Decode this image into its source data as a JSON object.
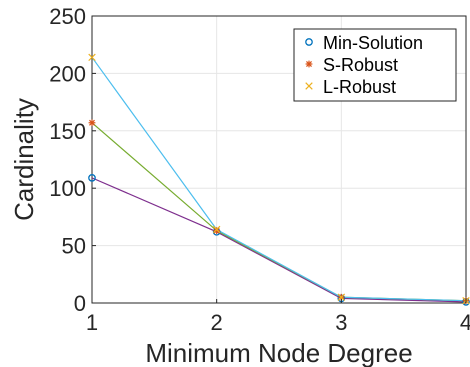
{
  "chart_data": {
    "type": "line",
    "xlabel": "Minimum Node Degree",
    "ylabel": "Cardinality",
    "x": [
      1,
      2,
      3,
      4
    ],
    "xlim": [
      1,
      4
    ],
    "ylim": [
      0,
      250
    ],
    "xticks": [
      "1",
      "2",
      "3",
      "4"
    ],
    "yticks": [
      "0",
      "50",
      "100",
      "150",
      "200",
      "250"
    ],
    "grid": true,
    "legend_position": "top-right",
    "series": [
      {
        "name": "Min-Solution",
        "values": [
          109,
          62,
          4,
          1
        ],
        "line_color": "#7e2f8e",
        "marker": "circle",
        "marker_color": "#0072bd"
      },
      {
        "name": "S-Robust",
        "values": [
          157,
          63,
          5,
          2
        ],
        "line_color": "#77ac30",
        "marker": "asterisk",
        "marker_color": "#d95319"
      },
      {
        "name": "L-Robust",
        "values": [
          214,
          64,
          5,
          2
        ],
        "line_color": "#4dbeee",
        "marker": "x",
        "marker_color": "#edb120"
      }
    ]
  }
}
